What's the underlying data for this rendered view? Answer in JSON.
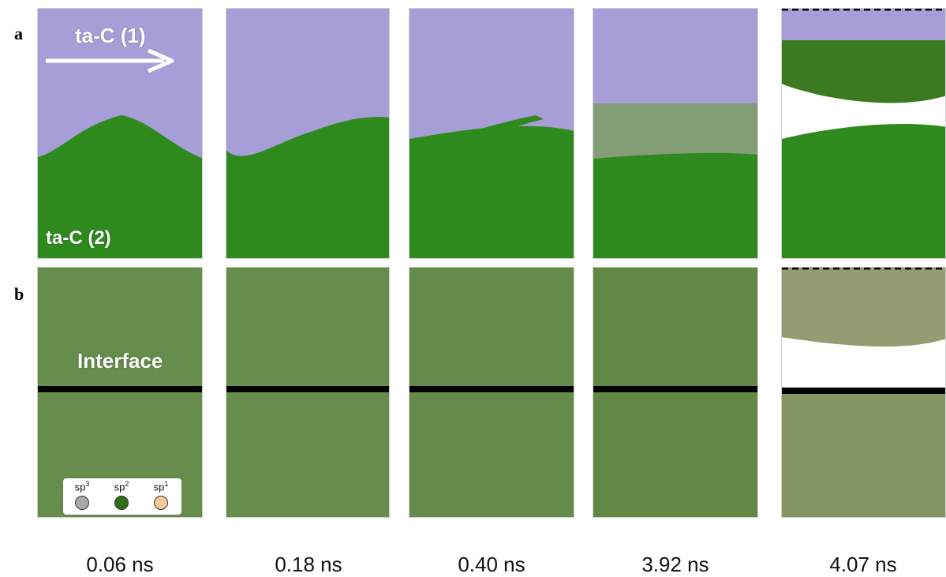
{
  "row_labels": [
    "a",
    "b"
  ],
  "overlay": {
    "top_material": "ta-C (1)",
    "bottom_material": "ta-C (2)",
    "interface": "Interface"
  },
  "legend": [
    {
      "label": "sp",
      "sup": "3",
      "color": "#a9a9a9"
    },
    {
      "label": "sp",
      "sup": "2",
      "color": "#2f6e12"
    },
    {
      "label": "sp",
      "sup": "1",
      "color": "#f4c99a"
    }
  ],
  "times": [
    "0.06 ns",
    "0.18 ns",
    "0.40 ns",
    "3.92 ns",
    "4.07 ns"
  ],
  "colors": {
    "upper_layer": "#a79ed8",
    "lower_layer": "#2f8a1e",
    "sp3": "#a9a9a9",
    "sp2": "#3d7518",
    "sp1": "#f1c7b2",
    "interface_line": "#000000"
  }
}
